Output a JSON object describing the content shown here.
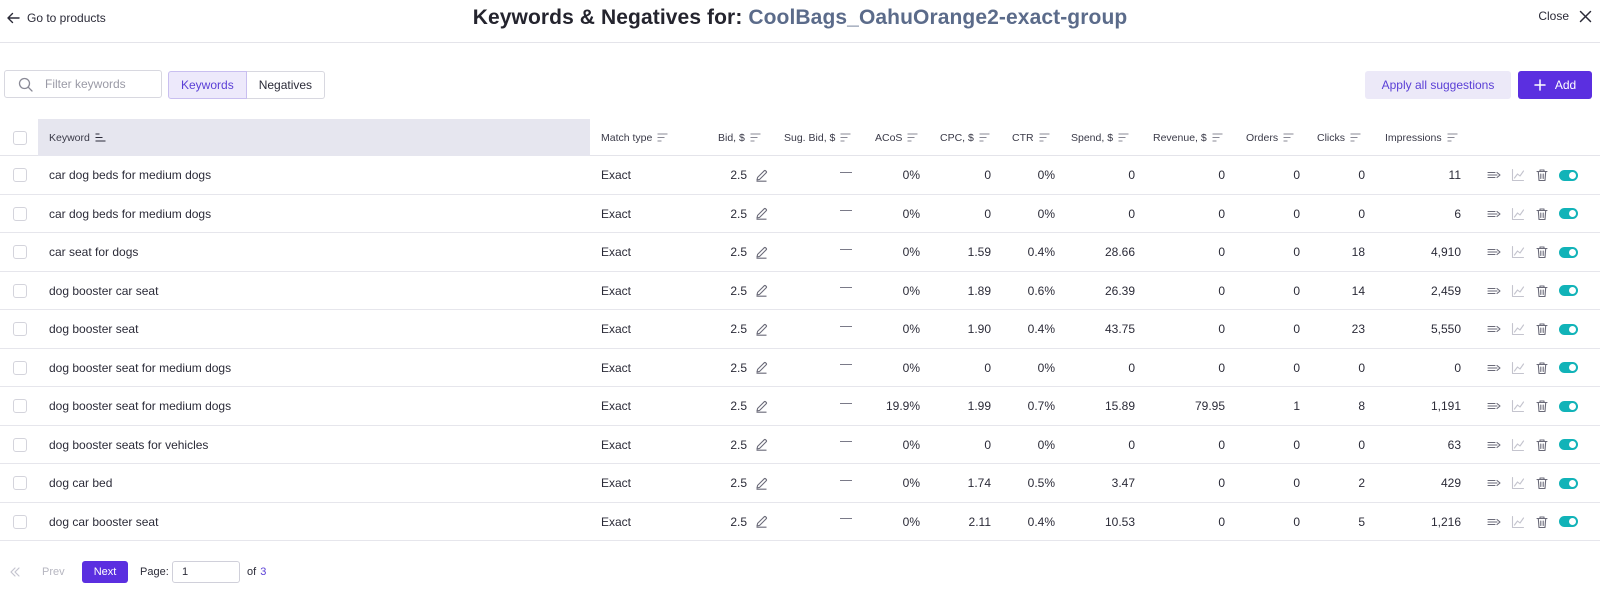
{
  "header": {
    "back_label": "Go to products",
    "title_prefix": "Keywords & Negatives for: ",
    "title_group": "CoolBags_OahuOrange2-exact-group",
    "close_label": "Close"
  },
  "toolbar": {
    "search_placeholder": "Filter keywords",
    "tabs": [
      {
        "label": "Keywords",
        "active": true
      },
      {
        "label": "Negatives",
        "active": false
      }
    ],
    "apply_label": "Apply all suggestions",
    "add_label": "Add"
  },
  "columns": {
    "keyword": "Keyword",
    "match_type": "Match type",
    "bid": "Bid, $",
    "sug_bid": "Sug. Bid, $",
    "acos": "ACoS",
    "cpc": "CPC, $",
    "ctr": "CTR",
    "spend": "Spend, $",
    "revenue": "Revenue, $",
    "orders": "Orders",
    "clicks": "Clicks",
    "impressions": "Impressions"
  },
  "rows": [
    {
      "keyword": "car dog beds for medium dogs",
      "match": "Exact",
      "bid": "2.5",
      "acos": "0%",
      "cpc": "0",
      "ctr": "0%",
      "spend": "0",
      "revenue": "0",
      "orders": "0",
      "clicks": "0",
      "impressions": "11"
    },
    {
      "keyword": "car dog beds for medium dogs",
      "match": "Exact",
      "bid": "2.5",
      "acos": "0%",
      "cpc": "0",
      "ctr": "0%",
      "spend": "0",
      "revenue": "0",
      "orders": "0",
      "clicks": "0",
      "impressions": "6"
    },
    {
      "keyword": "car seat for dogs",
      "match": "Exact",
      "bid": "2.5",
      "acos": "0%",
      "cpc": "1.59",
      "ctr": "0.4%",
      "spend": "28.66",
      "revenue": "0",
      "orders": "0",
      "clicks": "18",
      "impressions": "4,910"
    },
    {
      "keyword": "dog booster car seat",
      "match": "Exact",
      "bid": "2.5",
      "acos": "0%",
      "cpc": "1.89",
      "ctr": "0.6%",
      "spend": "26.39",
      "revenue": "0",
      "orders": "0",
      "clicks": "14",
      "impressions": "2,459"
    },
    {
      "keyword": "dog booster seat",
      "match": "Exact",
      "bid": "2.5",
      "acos": "0%",
      "cpc": "1.90",
      "ctr": "0.4%",
      "spend": "43.75",
      "revenue": "0",
      "orders": "0",
      "clicks": "23",
      "impressions": "5,550"
    },
    {
      "keyword": "dog booster seat for medium dogs",
      "match": "Exact",
      "bid": "2.5",
      "acos": "0%",
      "cpc": "0",
      "ctr": "0%",
      "spend": "0",
      "revenue": "0",
      "orders": "0",
      "clicks": "0",
      "impressions": "0"
    },
    {
      "keyword": "dog booster seat for medium dogs",
      "match": "Exact",
      "bid": "2.5",
      "acos": "19.9%",
      "cpc": "1.99",
      "ctr": "0.7%",
      "spend": "15.89",
      "revenue": "79.95",
      "orders": "1",
      "clicks": "8",
      "impressions": "1,191"
    },
    {
      "keyword": "dog booster seats for vehicles",
      "match": "Exact",
      "bid": "2.5",
      "acos": "0%",
      "cpc": "0",
      "ctr": "0%",
      "spend": "0",
      "revenue": "0",
      "orders": "0",
      "clicks": "0",
      "impressions": "63"
    },
    {
      "keyword": "dog car bed",
      "match": "Exact",
      "bid": "2.5",
      "acos": "0%",
      "cpc": "1.74",
      "ctr": "0.5%",
      "spend": "3.47",
      "revenue": "0",
      "orders": "0",
      "clicks": "2",
      "impressions": "429"
    },
    {
      "keyword": "dog car booster seat",
      "match": "Exact",
      "bid": "2.5",
      "acos": "0%",
      "cpc": "2.11",
      "ctr": "0.4%",
      "spend": "10.53",
      "revenue": "0",
      "orders": "0",
      "clicks": "5",
      "impressions": "1,216"
    }
  ],
  "pagination": {
    "prev_label": "Prev",
    "next_label": "Next",
    "page_label": "Page:",
    "current_page": "1",
    "of_label": "of",
    "total_pages": "3"
  },
  "colors": {
    "accent": "#5b2fe0",
    "toggle_on": "#11b3b8",
    "header_highlight": "#e6e6ef"
  },
  "icons": {
    "back": "arrow-left-icon",
    "close": "close-icon",
    "search": "search-icon",
    "add": "plus-icon",
    "sort": "sort-lines-icon",
    "edit": "pencil-icon",
    "row_actions": [
      "move-arrow-icon",
      "chart-icon",
      "trash-icon",
      "toggle-switch"
    ]
  }
}
